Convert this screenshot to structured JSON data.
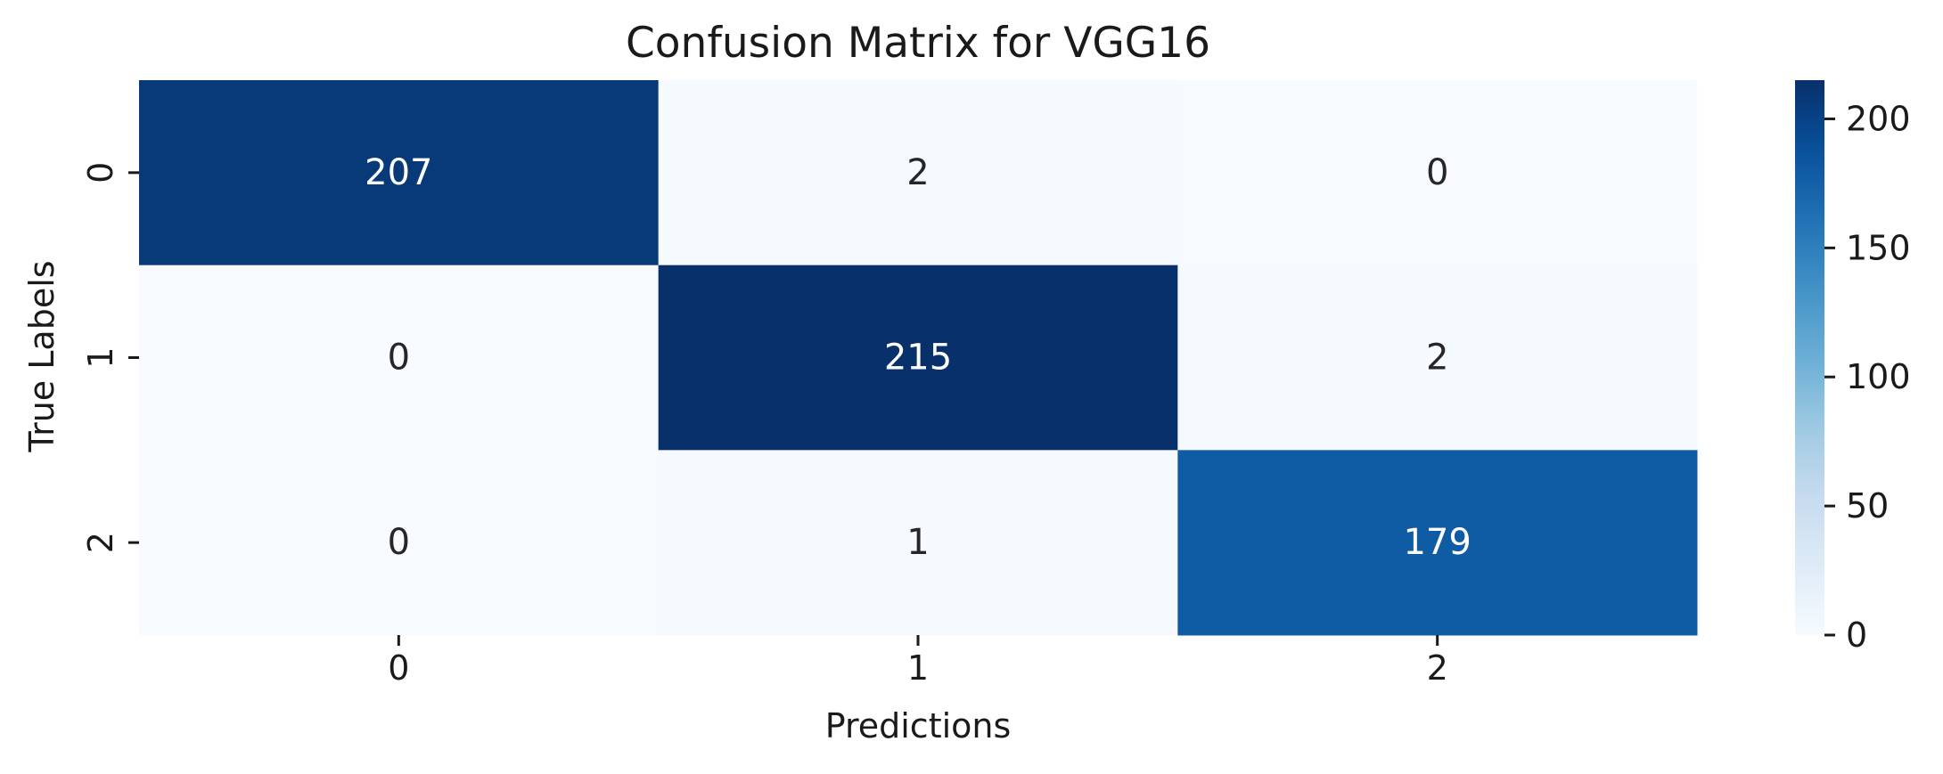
{
  "chart_data": {
    "type": "heatmap",
    "title": "Confusion Matrix for VGG16",
    "xlabel": "Predictions",
    "ylabel": "True Labels",
    "x_categories": [
      "0",
      "1",
      "2"
    ],
    "y_categories": [
      "0",
      "1",
      "2"
    ],
    "values": [
      [
        207,
        2,
        0
      ],
      [
        0,
        215,
        2
      ],
      [
        0,
        1,
        179
      ]
    ],
    "colormap": "Blues",
    "color_range": [
      0,
      215
    ],
    "colorbar": {
      "ticks": [
        0,
        50,
        100,
        150,
        200
      ],
      "tick_labels": [
        "0",
        "50",
        "100",
        "150",
        "200"
      ]
    },
    "colors": {
      "low": "#f7fbff",
      "high": "#08306b",
      "text_dark": "#262626",
      "text_light": "#ffffff"
    }
  }
}
